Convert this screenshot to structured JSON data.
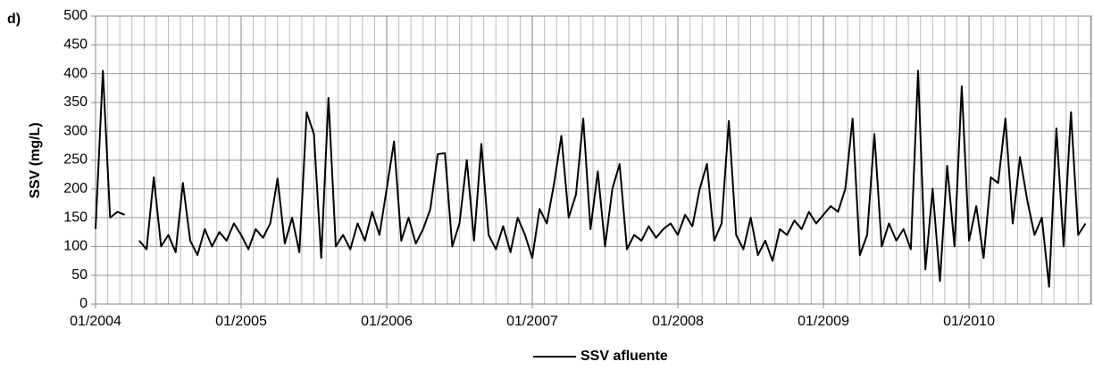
{
  "chart_data": {
    "type": "line",
    "panel_label": "d)",
    "ylabel": "SSV (mg/L)",
    "x": [
      2004.0,
      2004.05,
      2004.1,
      2004.15,
      2004.2,
      2004.25,
      2004.3,
      2004.35,
      2004.4,
      2004.45,
      2004.5,
      2004.55,
      2004.6,
      2004.65,
      2004.7,
      2004.75,
      2004.8,
      2004.85,
      2004.9,
      2004.95,
      2005.0,
      2005.05,
      2005.1,
      2005.15,
      2005.2,
      2005.25,
      2005.3,
      2005.35,
      2005.4,
      2005.45,
      2005.5,
      2005.55,
      2005.6,
      2005.65,
      2005.7,
      2005.75,
      2005.8,
      2005.85,
      2005.9,
      2005.95,
      2006.0,
      2006.05,
      2006.1,
      2006.15,
      2006.2,
      2006.25,
      2006.3,
      2006.35,
      2006.4,
      2006.45,
      2006.5,
      2006.55,
      2006.6,
      2006.65,
      2006.7,
      2006.75,
      2006.8,
      2006.85,
      2006.9,
      2006.95,
      2007.0,
      2007.05,
      2007.1,
      2007.15,
      2007.2,
      2007.25,
      2007.3,
      2007.35,
      2007.4,
      2007.45,
      2007.5,
      2007.55,
      2007.6,
      2007.65,
      2007.7,
      2007.75,
      2007.8,
      2007.85,
      2007.9,
      2007.95,
      2008.0,
      2008.05,
      2008.1,
      2008.15,
      2008.2,
      2008.25,
      2008.3,
      2008.35,
      2008.4,
      2008.45,
      2008.5,
      2008.55,
      2008.6,
      2008.65,
      2008.7,
      2008.75,
      2008.8,
      2008.85,
      2008.9,
      2008.95,
      2009.0,
      2009.05,
      2009.1,
      2009.15,
      2009.2,
      2009.25,
      2009.3,
      2009.35,
      2009.4,
      2009.45,
      2009.5,
      2009.55,
      2009.6,
      2009.65,
      2009.7,
      2009.75,
      2009.8,
      2009.85,
      2009.9,
      2009.95,
      2010.0,
      2010.05,
      2010.1,
      2010.15,
      2010.2,
      2010.25,
      2010.3,
      2010.35,
      2010.4,
      2010.45,
      2010.5,
      2010.55,
      2010.6,
      2010.65,
      2010.7,
      2010.75,
      2010.8
    ],
    "series": [
      {
        "name": "SSV afluente",
        "color": "#000000",
        "values": [
          130,
          405,
          150,
          160,
          155,
          null,
          110,
          95,
          220,
          100,
          120,
          90,
          210,
          110,
          85,
          130,
          100,
          125,
          110,
          140,
          120,
          95,
          130,
          115,
          140,
          218,
          105,
          150,
          90,
          333,
          295,
          80,
          358,
          100,
          120,
          95,
          140,
          110,
          160,
          120,
          200,
          282,
          110,
          150,
          105,
          130,
          165,
          260,
          262,
          100,
          140,
          250,
          110,
          278,
          120,
          95,
          135,
          90,
          150,
          120,
          80,
          165,
          140,
          210,
          292,
          150,
          190,
          322,
          130,
          230,
          100,
          200,
          243,
          95,
          120,
          110,
          135,
          115,
          130,
          140,
          120,
          155,
          135,
          200,
          243,
          110,
          140,
          318,
          120,
          95,
          150,
          85,
          110,
          75,
          130,
          120,
          145,
          130,
          160,
          140,
          155,
          170,
          160,
          200,
          322,
          85,
          120,
          295,
          100,
          140,
          110,
          130,
          95,
          405,
          60,
          200,
          40,
          240,
          100,
          378,
          110,
          170,
          80,
          220,
          210,
          322,
          140,
          255,
          180,
          120,
          150,
          30,
          305,
          100,
          333,
          120,
          140
        ]
      }
    ],
    "xlim": [
      2004,
      2010.84
    ],
    "xticks": [
      {
        "value": 2004,
        "label": "01/2004"
      },
      {
        "value": 2005,
        "label": "01/2005"
      },
      {
        "value": 2006,
        "label": "01/2006"
      },
      {
        "value": 2007,
        "label": "01/2007"
      },
      {
        "value": 2008,
        "label": "01/2008"
      },
      {
        "value": 2009,
        "label": "01/2009"
      },
      {
        "value": 2010,
        "label": "01/2010"
      }
    ],
    "ylim": [
      0,
      500
    ],
    "yticks": [
      0,
      50,
      100,
      150,
      200,
      250,
      300,
      350,
      400,
      450,
      500
    ],
    "grid": true,
    "legend": "bottom"
  }
}
